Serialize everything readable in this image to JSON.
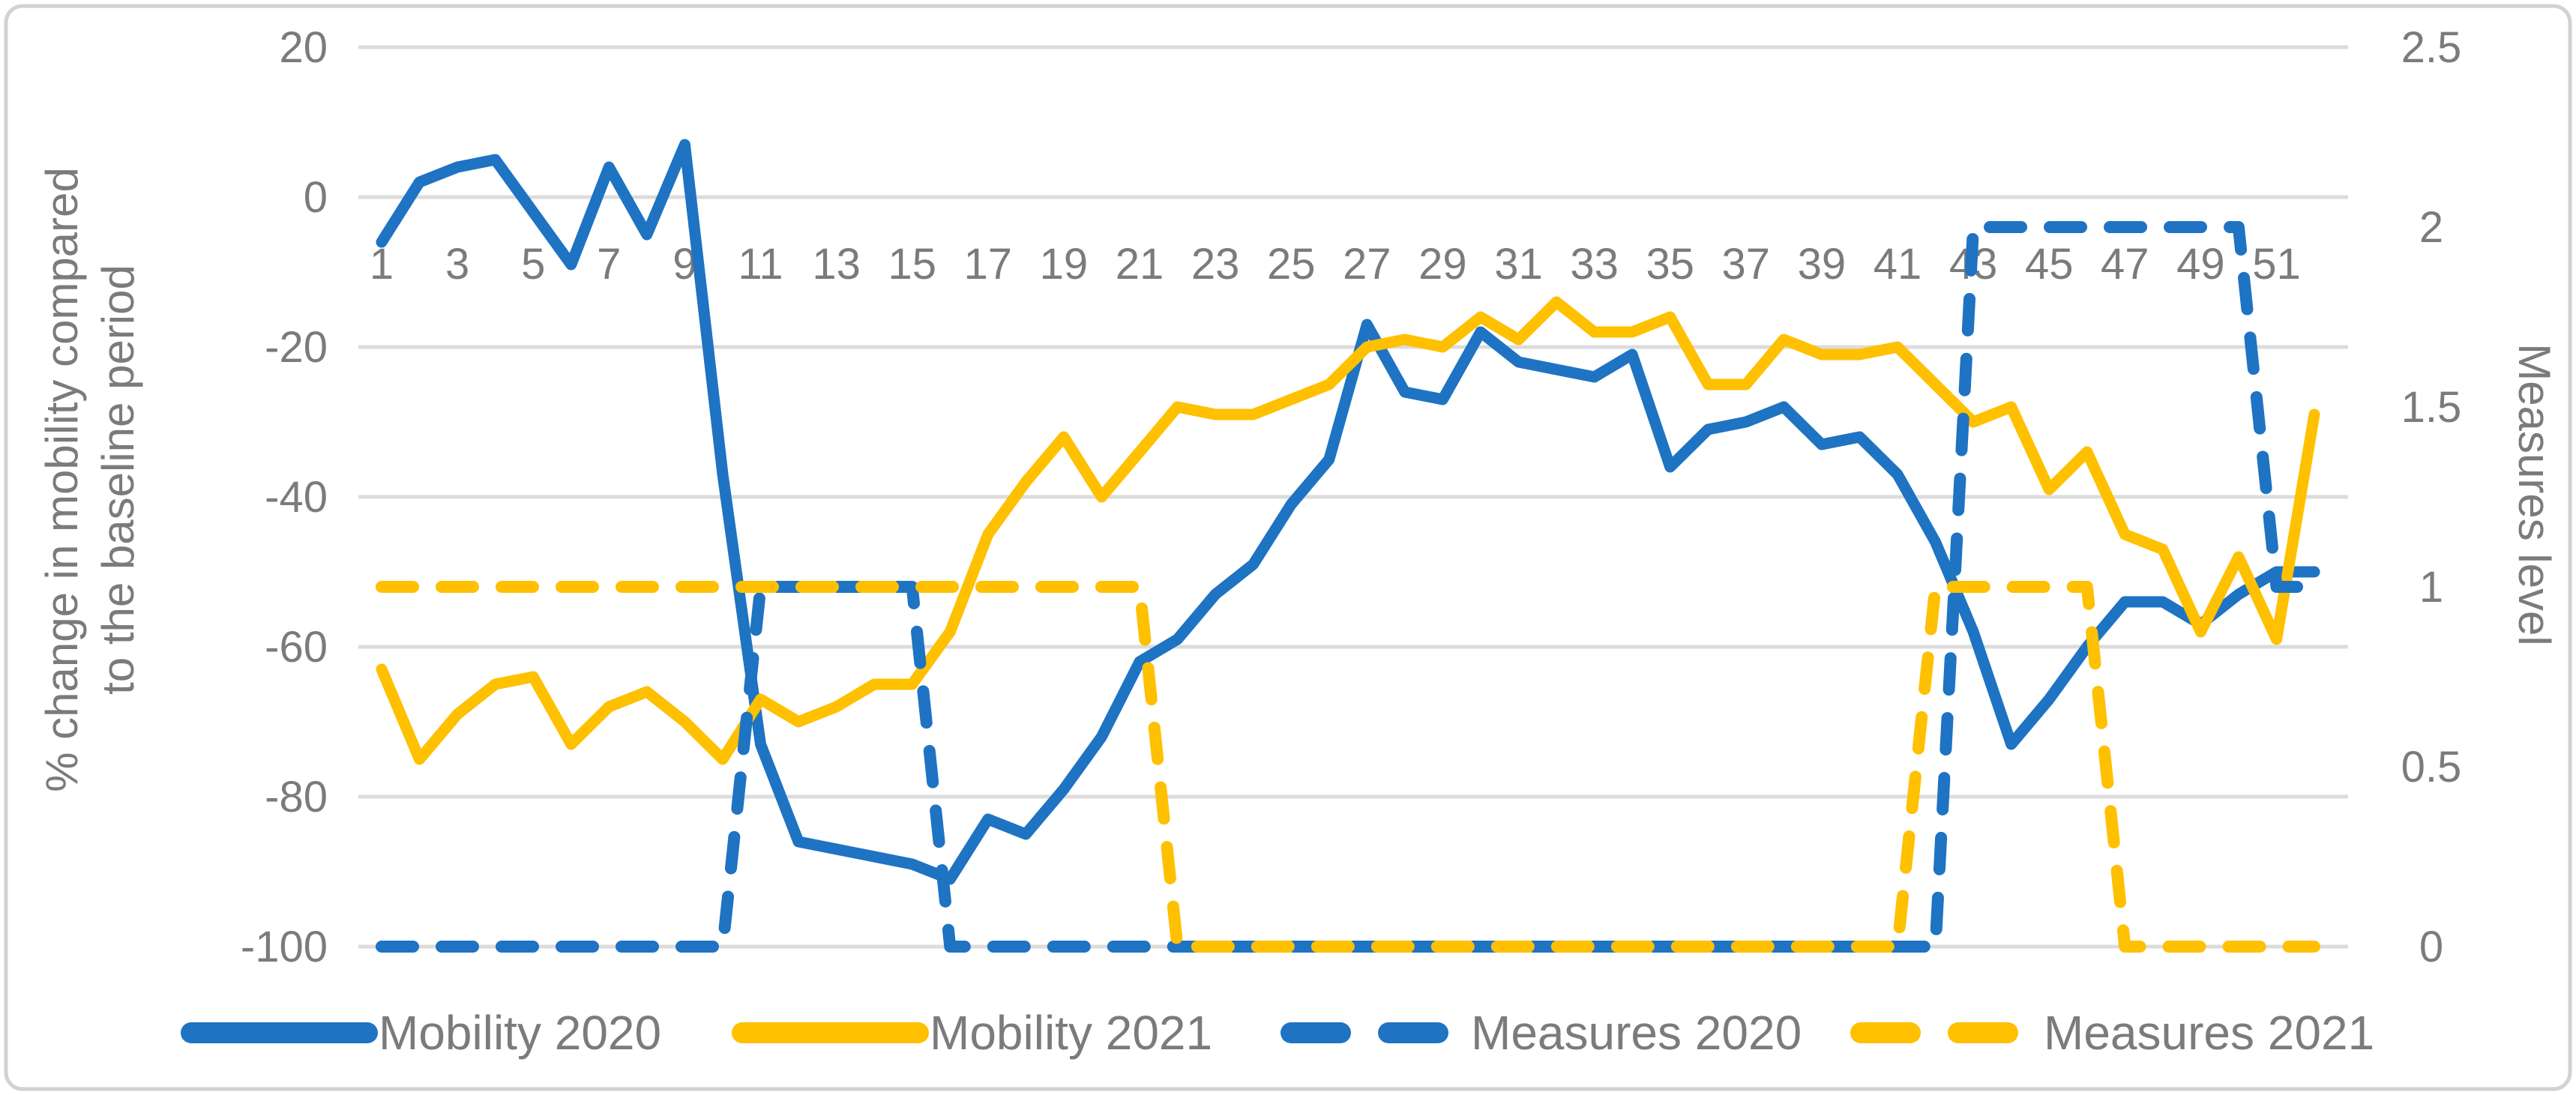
{
  "chart_data": {
    "type": "line",
    "title": "",
    "categories": [
      1,
      2,
      3,
      4,
      5,
      6,
      7,
      8,
      9,
      10,
      11,
      12,
      13,
      14,
      15,
      16,
      17,
      18,
      19,
      20,
      21,
      22,
      23,
      24,
      25,
      26,
      27,
      28,
      29,
      30,
      31,
      32,
      33,
      34,
      35,
      36,
      37,
      38,
      39,
      40,
      41,
      42,
      43,
      44,
      45,
      46,
      47,
      48,
      49,
      50,
      51,
      52
    ],
    "x_tick_labels": [
      "1",
      "3",
      "5",
      "7",
      "9",
      "11",
      "13",
      "15",
      "17",
      "19",
      "21",
      "23",
      "25",
      "27",
      "29",
      "31",
      "33",
      "35",
      "37",
      "39",
      "41",
      "43",
      "45",
      "47",
      "49",
      "51"
    ],
    "left_axis": {
      "title_lines": [
        "% change in mobility compared",
        "to the baseline period"
      ],
      "tick_labels": [
        "20",
        "0",
        "-20",
        "-40",
        "-60",
        "-80",
        "-100"
      ],
      "tick_values": [
        20,
        0,
        -20,
        -40,
        -60,
        -80,
        -100
      ],
      "range": [
        -100,
        20
      ],
      "grid": true
    },
    "right_axis": {
      "title": "Measures level",
      "tick_labels": [
        "2.5",
        "2",
        "1.5",
        "1",
        "0.5",
        "0"
      ],
      "tick_values": [
        2.5,
        2,
        1.5,
        1,
        0.5,
        0
      ],
      "range": [
        0,
        2.5
      ]
    },
    "legend_position": "bottom",
    "series": [
      {
        "name": "Mobility 2020",
        "axis": "left",
        "style": "solid",
        "color": "#1e73c3",
        "values": [
          -6,
          2,
          4,
          5,
          -2,
          -9,
          4,
          -5,
          7,
          -37,
          -73,
          -86,
          -87,
          -88,
          -89,
          -91,
          -83,
          -85,
          -79,
          -72,
          -62,
          -59,
          -53,
          -49,
          -41,
          -35,
          -17,
          -26,
          -27,
          -18,
          -22,
          -23,
          -24,
          -21,
          -36,
          -31,
          -30,
          -28,
          -33,
          -32,
          -37,
          -46,
          -58,
          -73,
          -67,
          -60,
          -54,
          -54,
          -57,
          -53,
          -50,
          -50
        ]
      },
      {
        "name": "Mobility 2021",
        "axis": "left",
        "style": "solid",
        "color": "#ffc000",
        "values": [
          -63,
          -75,
          -69,
          -65,
          -64,
          -73,
          -68,
          -66,
          -70,
          -75,
          -67,
          -70,
          -68,
          -65,
          -65,
          -58,
          -45,
          -38,
          -32,
          -40,
          -34,
          -28,
          -29,
          -29,
          -27,
          -25,
          -20,
          -19,
          -20,
          -16,
          -19,
          -14,
          -18,
          -18,
          -16,
          -25,
          -25,
          -19,
          -21,
          -21,
          -20,
          -25,
          -30,
          -28,
          -39,
          -34,
          -45,
          -47,
          -58,
          -48,
          -59,
          -29
        ]
      },
      {
        "name": "Measures 2020",
        "axis": "right",
        "style": "dashed",
        "color": "#1e73c3",
        "values": [
          0,
          0,
          0,
          0,
          0,
          0,
          0,
          0,
          0,
          0,
          1,
          1,
          1,
          1,
          1,
          0,
          0,
          0,
          0,
          0,
          0,
          0,
          0,
          0,
          0,
          0,
          0,
          0,
          0,
          0,
          0,
          0,
          0,
          0,
          0,
          0,
          0,
          0,
          0,
          0,
          0,
          0,
          2,
          2,
          2,
          2,
          2,
          2,
          2,
          2,
          1,
          1
        ]
      },
      {
        "name": "Measures 2021",
        "axis": "right",
        "style": "dashed",
        "color": "#ffc000",
        "values": [
          1,
          1,
          1,
          1,
          1,
          1,
          1,
          1,
          1,
          1,
          1,
          1,
          1,
          1,
          1,
          1,
          1,
          1,
          1,
          1,
          1,
          0,
          0,
          0,
          0,
          0,
          0,
          0,
          0,
          0,
          0,
          0,
          0,
          0,
          0,
          0,
          0,
          0,
          0,
          0,
          0,
          1,
          1,
          1,
          1,
          1,
          0,
          0,
          0,
          0,
          0,
          0
        ]
      }
    ],
    "legend": [
      {
        "label": "Mobility 2020"
      },
      {
        "label": "Mobility 2021"
      },
      {
        "label": "Measures 2020"
      },
      {
        "label": "Measures 2021"
      }
    ]
  },
  "colors": {
    "series_blue": "#1e73c3",
    "series_yellow": "#ffc000",
    "gridline": "#dcdcdc",
    "border": "#d2d2d2",
    "label_gray": "#7b7b7b",
    "background": "#ffffff"
  }
}
